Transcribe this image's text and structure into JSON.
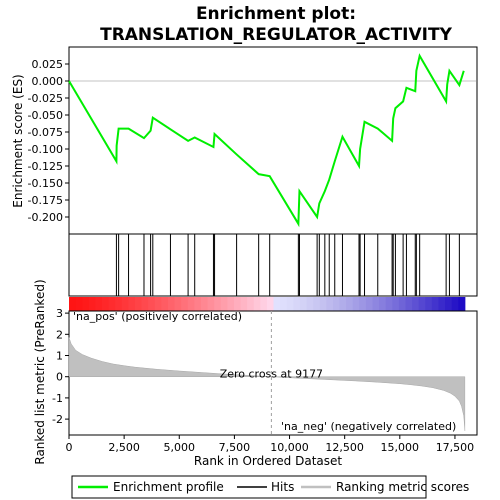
{
  "title_line1": "Enrichment plot:",
  "title_line2": "TRANSLATION_REGULATOR_ACTIVITY",
  "colors": {
    "enrichment_line": "#00ee00",
    "hit_line": "#000000",
    "metric_fill": "#c0c0c0",
    "pos_label": "#cc0000",
    "neg_label": "#0000cc"
  },
  "chart_data": [
    {
      "type": "line",
      "name": "enrichment-profile",
      "ylabel": "Enrichment score (ES)",
      "xlim": [
        0,
        18500
      ],
      "ylim": [
        -0.225,
        0.05
      ],
      "yticks": [
        0.025,
        0.0,
        -0.025,
        -0.05,
        -0.075,
        -0.1,
        -0.125,
        -0.15,
        -0.175,
        -0.2
      ],
      "ytick_labels": [
        "0.025",
        "0.000",
        "-0.025",
        "-0.050",
        "-0.075",
        "-0.100",
        "-0.125",
        "-0.150",
        "-0.175",
        "-0.200"
      ],
      "x": [
        0,
        2150,
        2160,
        2250,
        2700,
        3400,
        3700,
        3800,
        4600,
        5400,
        5700,
        6550,
        6600,
        7600,
        8600,
        9100,
        10400,
        10450,
        11250,
        11350,
        11600,
        11800,
        12050,
        12400,
        13150,
        13200,
        13400,
        14000,
        14650,
        14700,
        14800,
        15150,
        15300,
        15700,
        15750,
        15900,
        17100,
        17150,
        17250,
        17700,
        17900
      ],
      "y": [
        -0.0,
        -0.118,
        -0.095,
        -0.07,
        -0.07,
        -0.084,
        -0.073,
        -0.054,
        -0.071,
        -0.088,
        -0.083,
        -0.097,
        -0.078,
        -0.108,
        -0.137,
        -0.14,
        -0.21,
        -0.162,
        -0.2,
        -0.18,
        -0.162,
        -0.145,
        -0.118,
        -0.082,
        -0.125,
        -0.1,
        -0.06,
        -0.07,
        -0.088,
        -0.055,
        -0.04,
        -0.03,
        -0.01,
        -0.015,
        0.015,
        0.037,
        -0.03,
        -0.005,
        0.015,
        -0.006,
        0.015
      ]
    },
    {
      "type": "hits",
      "name": "hits",
      "x": [
        2150,
        2250,
        2700,
        3400,
        3700,
        3800,
        4600,
        5400,
        5700,
        6550,
        6600,
        7600,
        8600,
        9100,
        10400,
        10450,
        11250,
        11350,
        11600,
        11800,
        12050,
        12400,
        13150,
        13200,
        13400,
        14000,
        14650,
        14700,
        14800,
        15150,
        15300,
        15700,
        15750,
        15900,
        17100,
        17250,
        17700
      ]
    },
    {
      "type": "area",
      "name": "ranked-list-metric",
      "xlabel": "Rank in Ordered Dataset",
      "ylabel": "Ranked list metric (PreRanked)",
      "xlim": [
        0,
        18500
      ],
      "ylim": [
        -2.75,
        3.1
      ],
      "xticks": [
        0,
        2500,
        5000,
        7500,
        10000,
        12500,
        15000,
        17500
      ],
      "xtick_labels": [
        "0",
        "2,500",
        "5,000",
        "7,500",
        "10,000",
        "12,500",
        "15,000",
        "17,500"
      ],
      "yticks": [
        3,
        2,
        1,
        0,
        -1,
        -2
      ],
      "ytick_labels": [
        "3",
        "2",
        "1",
        "0",
        "-1",
        "-2"
      ],
      "x": [
        0,
        100,
        300,
        600,
        1000,
        1500,
        2000,
        2500,
        3000,
        4000,
        5000,
        6000,
        7000,
        8000,
        9177,
        10000,
        11000,
        12000,
        13000,
        14000,
        15000,
        15500,
        16000,
        16500,
        17000,
        17300,
        17500,
        17700,
        17800,
        17900,
        17950
      ],
      "y": [
        1.85,
        1.55,
        1.25,
        1.05,
        0.88,
        0.72,
        0.6,
        0.52,
        0.45,
        0.35,
        0.27,
        0.2,
        0.13,
        0.07,
        0.0,
        -0.05,
        -0.1,
        -0.15,
        -0.2,
        -0.26,
        -0.33,
        -0.38,
        -0.44,
        -0.52,
        -0.65,
        -0.78,
        -0.92,
        -1.15,
        -1.4,
        -1.85,
        -2.55
      ],
      "zero_cross_label": "Zero cross at 9177",
      "pos_label": "'na_pos' (positively correlated)",
      "neg_label": "'na_neg' (negatively correlated)"
    }
  ],
  "legend": {
    "items": [
      {
        "label": "Enrichment profile",
        "color": "#00ee00"
      },
      {
        "label": "Hits",
        "color": "#000000"
      },
      {
        "label": "Ranking metric scores",
        "color": "#c0c0c0"
      }
    ]
  }
}
